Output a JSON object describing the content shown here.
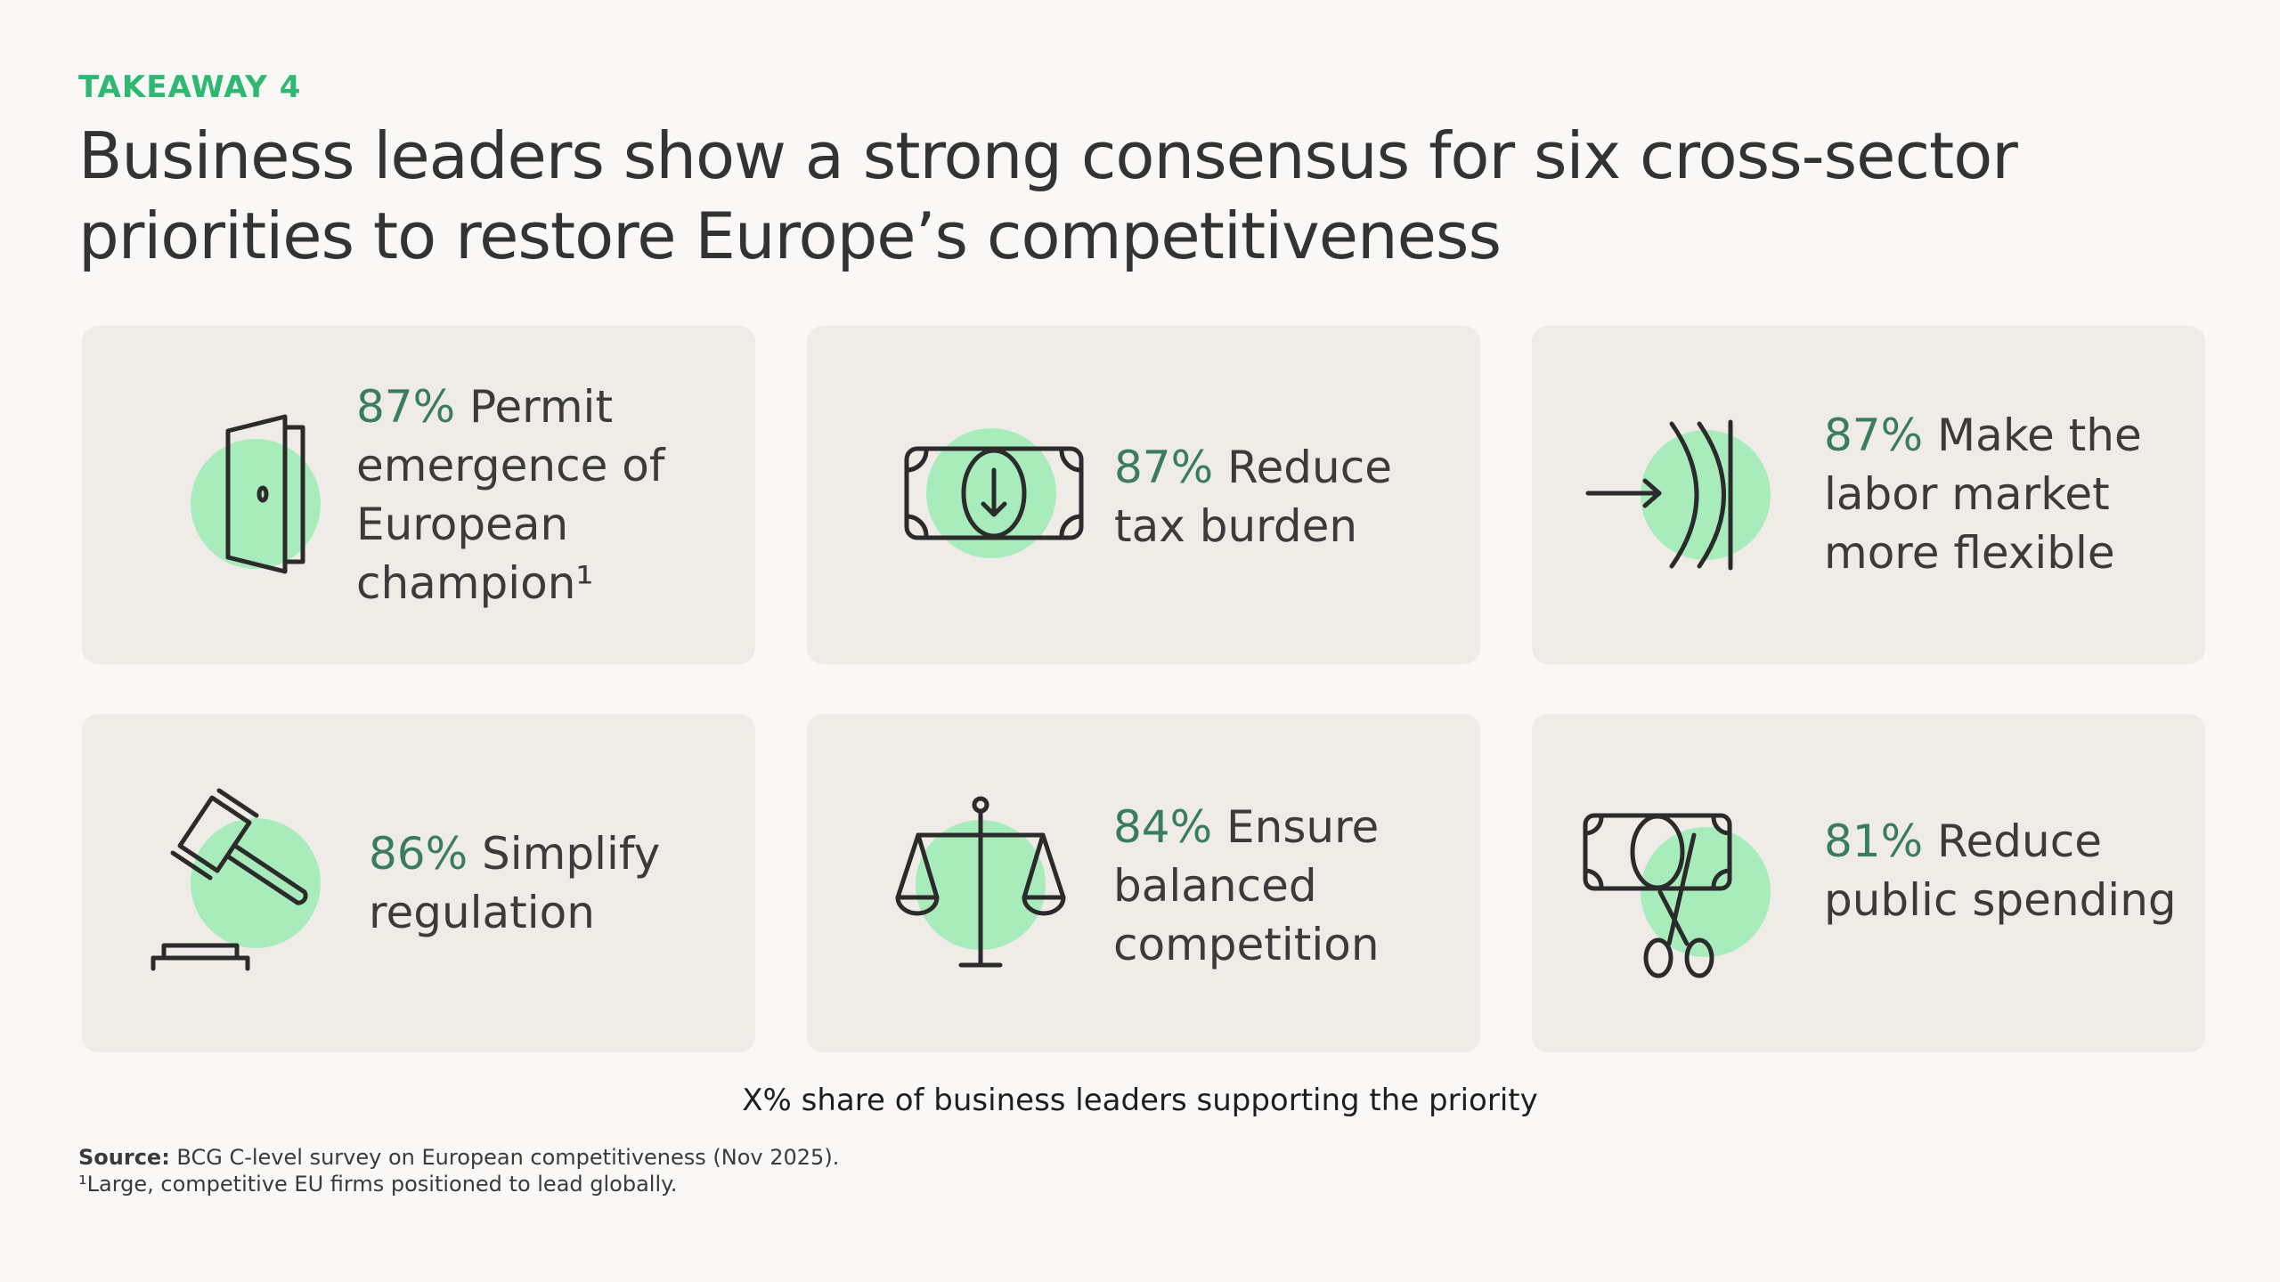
{
  "header": {
    "kicker": "TAKEAWAY 4",
    "title": "Business leaders show a strong consensus for six cross-sector priorities to restore Europe’s competitiveness"
  },
  "priorities": [
    {
      "percent": "87%",
      "label": "Permit emergence of European champion¹",
      "icon": "door-icon"
    },
    {
      "percent": "87%",
      "label": "Reduce tax burden",
      "icon": "banknote-down-icon"
    },
    {
      "percent": "87%",
      "label": "Make the labor market more flexible",
      "icon": "arrow-barrier-icon"
    },
    {
      "percent": "86%",
      "label": "Simplify regulation",
      "icon": "gavel-icon"
    },
    {
      "percent": "84%",
      "label": "Ensure balanced competition",
      "icon": "scales-icon"
    },
    {
      "percent": "81%",
      "label": "Reduce public spending",
      "icon": "banknote-scissors-icon"
    }
  ],
  "legend": "X% share of business leaders supporting the priority",
  "source": {
    "label": "Source:",
    "text": " BCG C-level survey on European competitiveness (Nov 2025)."
  },
  "footnote": "¹Large, competitive EU firms positioned to lead globally.",
  "colors": {
    "accent_green": "#2eb872",
    "percent_green": "#3a7d5e",
    "icon_circle": "#a8ecbc",
    "card_bg": "#efece8",
    "page_bg": "#f9f8f6"
  }
}
